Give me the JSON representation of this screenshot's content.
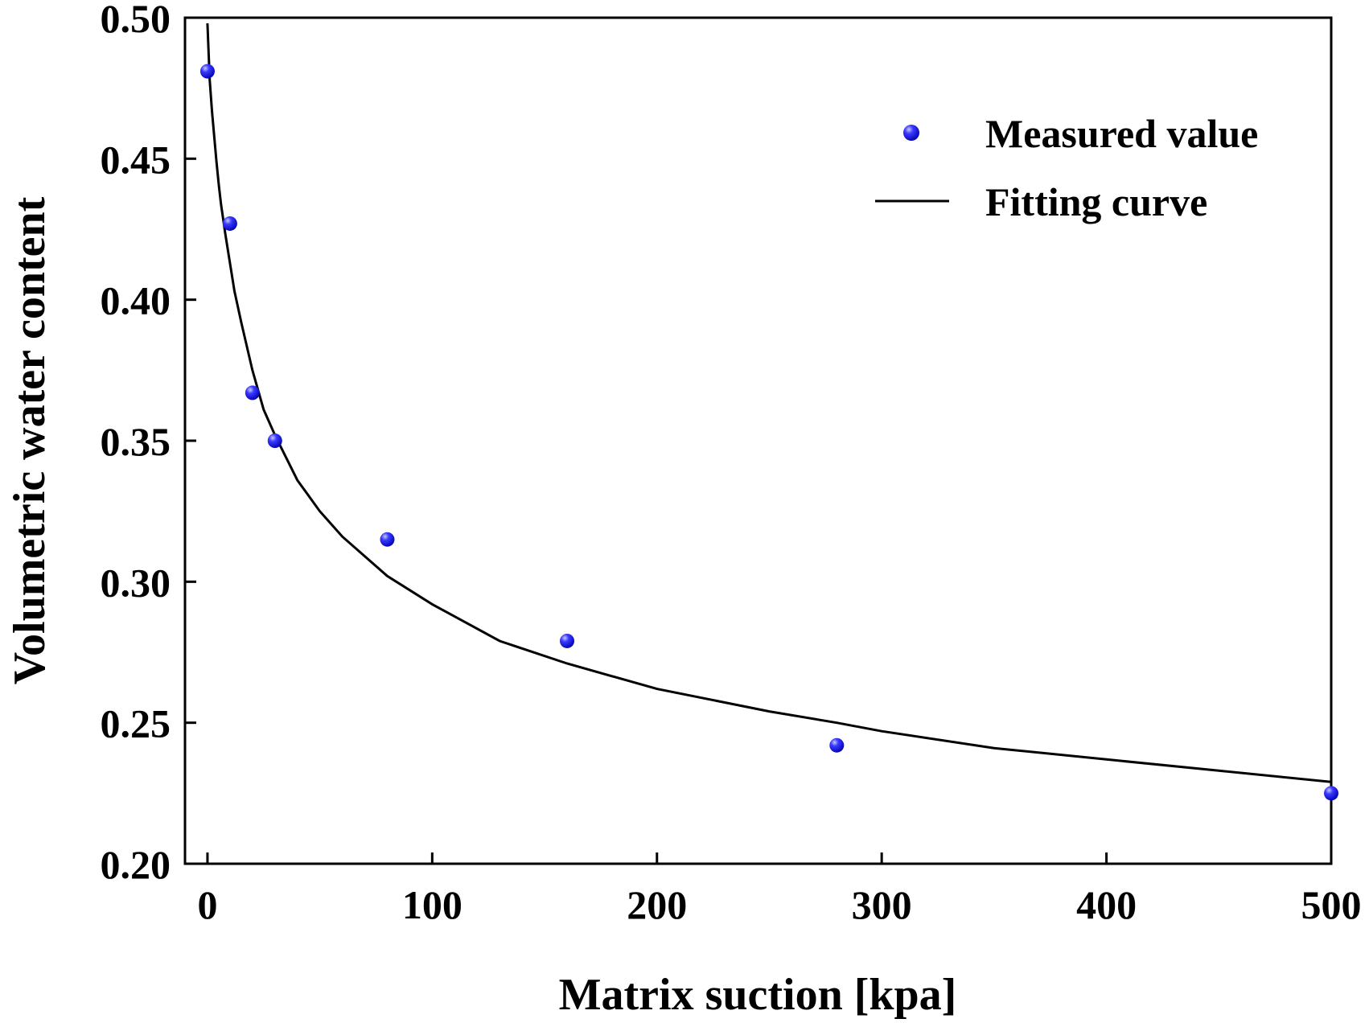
{
  "chart_data": {
    "type": "scatter",
    "title": "",
    "xlabel": "Matrix suction [kpa]",
    "ylabel": "Volumetric water content",
    "xlim": [
      -10,
      500
    ],
    "ylim": [
      0.2,
      0.5
    ],
    "xticks": [
      0,
      100,
      200,
      300,
      400,
      500
    ],
    "xtick_labels": [
      "0",
      "100",
      "200",
      "300",
      "400",
      "500"
    ],
    "yticks": [
      0.2,
      0.25,
      0.3,
      0.35,
      0.4,
      0.45,
      0.5
    ],
    "ytick_labels": [
      "0.20",
      "0.25",
      "0.30",
      "0.35",
      "0.40",
      "0.45",
      "0.50"
    ],
    "grid": false,
    "legend_position": "top-right",
    "series": [
      {
        "name": "Measured value",
        "kind": "scatter",
        "color": "#1a1aff",
        "x": [
          0,
          10,
          20,
          30,
          80,
          160,
          280,
          500
        ],
        "y": [
          0.481,
          0.427,
          0.367,
          0.35,
          0.315,
          0.279,
          0.242,
          0.225
        ]
      },
      {
        "name": "Fitting curve",
        "kind": "line",
        "color": "#000000",
        "x": [
          0,
          1,
          2,
          3,
          4,
          5,
          6,
          8,
          10,
          12,
          15,
          20,
          25,
          30,
          40,
          50,
          60,
          80,
          100,
          130,
          160,
          200,
          250,
          280,
          300,
          350,
          400,
          450,
          500
        ],
        "y": [
          0.498,
          0.478,
          0.467,
          0.458,
          0.449,
          0.441,
          0.434,
          0.423,
          0.413,
          0.403,
          0.392,
          0.375,
          0.361,
          0.352,
          0.336,
          0.325,
          0.316,
          0.302,
          0.292,
          0.279,
          0.271,
          0.262,
          0.254,
          0.25,
          0.247,
          0.241,
          0.237,
          0.233,
          0.229
        ]
      }
    ]
  }
}
